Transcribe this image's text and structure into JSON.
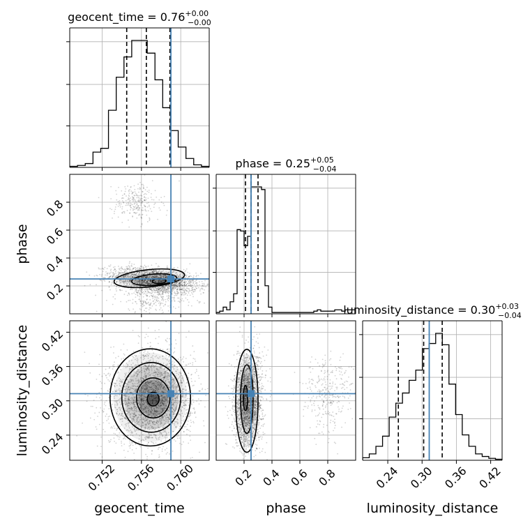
{
  "chart_data": {
    "type": "corner",
    "parameters": [
      {
        "name": "geocent_time",
        "axis_label": "geocent_time",
        "title_text": "geocent_time = 0.76",
        "title_upper": "+0.00",
        "title_lower": "−0.00",
        "range": [
          0.7487,
          0.7629
        ],
        "ticks": [
          0.752,
          0.756,
          0.76
        ],
        "tick_labels": [
          "0.752",
          "0.756",
          "0.760"
        ],
        "truth": 0.759,
        "quantiles": [
          0.7545,
          0.7565,
          0.7589
        ],
        "histogram": [
          0.008,
          0.015,
          0.03,
          0.12,
          0.15,
          0.45,
          0.71,
          0.87,
          1.0,
          1.0,
          0.9,
          0.69,
          0.47,
          0.29,
          0.16,
          0.07,
          0.02,
          0.008
        ]
      },
      {
        "name": "phase",
        "axis_label": "phase",
        "title_text": "phase = 0.25",
        "title_upper": "+0.05",
        "title_lower": "−0.04",
        "range": [
          0.0,
          1.0
        ],
        "ticks": [
          0.2,
          0.4,
          0.6,
          0.8
        ],
        "tick_labels": [
          "0.2",
          "0.4",
          "0.6",
          "0.8"
        ],
        "truth": 0.25,
        "quantiles": [
          0.21,
          0.25,
          0.3
        ],
        "histogram": [
          0.01,
          0.02,
          0.05,
          0.03,
          0.09,
          0.15,
          0.63,
          0.62,
          0.51,
          0.58,
          0.95,
          0.95,
          0.95,
          0.93,
          0.21,
          0.05,
          0.01,
          0.01,
          0.01,
          0.01,
          0.01,
          0.01,
          0.01,
          0.01,
          0.01,
          0.01,
          0.01,
          0.01,
          0.02,
          0.03,
          0.02,
          0.02,
          0.02,
          0.02,
          0.03,
          0.03,
          0.02,
          0.03,
          0.03,
          0.03
        ]
      },
      {
        "name": "luminosity_distance",
        "axis_label": "luminosity_distance",
        "title_text": "luminosity_distance = 0.30",
        "title_upper": "+0.03",
        "title_lower": "−0.04",
        "range": [
          0.196,
          0.44
        ],
        "ticks": [
          0.24,
          0.3,
          0.36,
          0.42
        ],
        "tick_labels": [
          "0.24",
          "0.30",
          "0.36",
          "0.42"
        ],
        "truth": 0.3125,
        "quantiles": [
          0.2585,
          0.3028,
          0.3352
        ],
        "histogram": [
          0.02,
          0.05,
          0.11,
          0.19,
          0.34,
          0.45,
          0.53,
          0.63,
          0.71,
          0.88,
          0.92,
          1.0,
          0.91,
          0.6,
          0.36,
          0.2,
          0.11,
          0.05,
          0.03,
          0.015,
          0.008
        ]
      }
    ],
    "joint": [
      {
        "x": 0,
        "y": 1,
        "name": "geocent_time-vs-phase",
        "modes": [
          {
            "cx": 0.7573,
            "cy": 0.24,
            "sx": 0.0022,
            "sy": 0.045,
            "rho": -0.35,
            "n": 2200
          },
          {
            "cx": 0.7555,
            "cy": 0.8,
            "sx": 0.0012,
            "sy": 0.07,
            "rho": 0.0,
            "n": 260
          },
          {
            "cx": 0.7575,
            "cy": 0.12,
            "sx": 0.002,
            "sy": 0.06,
            "rho": 0.0,
            "n": 300
          }
        ],
        "contours": [
          {
            "cx": 0.7578,
            "cy": 0.235,
            "rx": 0.0007,
            "ry": 0.018,
            "rot": -0.05,
            "width": 1.6
          },
          {
            "cx": 0.7573,
            "cy": 0.245,
            "rx": 0.0023,
            "ry": 0.04,
            "rot": -0.08,
            "width": 1.6
          },
          {
            "cx": 0.7568,
            "cy": 0.255,
            "rx": 0.0036,
            "ry": 0.062,
            "rot": -0.1,
            "width": 1.6
          }
        ]
      },
      {
        "x": 0,
        "y": 2,
        "name": "geocent_time-vs-luminosity_distance",
        "modes": [
          {
            "cx": 0.757,
            "cy": 0.305,
            "sx": 0.0021,
            "sy": 0.04,
            "rho": 0.05,
            "n": 2600
          }
        ],
        "contours": [
          {
            "cx": 0.7572,
            "cy": 0.303,
            "rx": 0.0006,
            "ry": 0.012,
            "rot": 0.0,
            "width": 1.6
          },
          {
            "cx": 0.7572,
            "cy": 0.305,
            "rx": 0.0017,
            "ry": 0.035,
            "rot": 0.0,
            "width": 1.6
          },
          {
            "cx": 0.757,
            "cy": 0.306,
            "rx": 0.003,
            "ry": 0.061,
            "rot": 0.0,
            "width": 1.6
          },
          {
            "cx": 0.7569,
            "cy": 0.306,
            "rx": 0.0041,
            "ry": 0.085,
            "rot": 0.0,
            "width": 1.6
          }
        ]
      },
      {
        "x": 1,
        "y": 2,
        "name": "phase-vs-luminosity_distance",
        "modes": [
          {
            "cx": 0.23,
            "cy": 0.3,
            "sx": 0.05,
            "sy": 0.04,
            "rho": 0.1,
            "n": 2300
          },
          {
            "cx": 0.8,
            "cy": 0.31,
            "sx": 0.09,
            "sy": 0.035,
            "rho": 0.0,
            "n": 320
          }
        ],
        "contours": [
          {
            "cx": 0.21,
            "cy": 0.305,
            "rx": 0.016,
            "ry": 0.022,
            "rot": 0.0,
            "width": 1.6
          },
          {
            "cx": 0.22,
            "cy": 0.303,
            "rx": 0.045,
            "ry": 0.06,
            "rot": 0.0,
            "width": 1.6
          },
          {
            "cx": 0.22,
            "cy": 0.3,
            "rx": 0.08,
            "ry": 0.09,
            "rot": 0.0,
            "width": 1.6
          }
        ]
      }
    ],
    "colors": {
      "truth": "#4682b4",
      "hist": "#000000",
      "grid": "#b0b0b0",
      "points": "#000000"
    },
    "grid": true
  }
}
